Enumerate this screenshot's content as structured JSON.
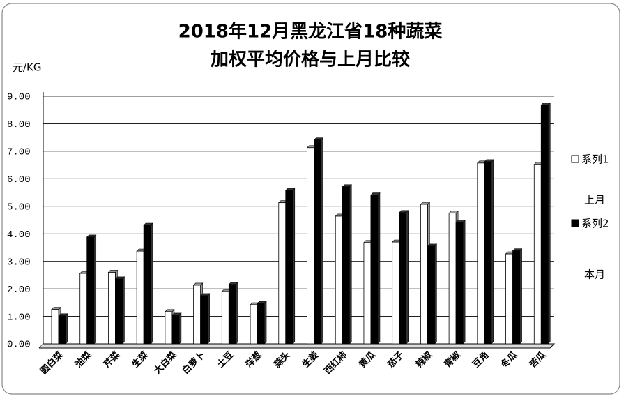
{
  "chart_data": {
    "type": "bar",
    "title": "2018年12月黑龙江省18种蔬菜",
    "subtitle": "加权平均价格与上月比较",
    "y_label": "元/KG",
    "categories": [
      "圆白菜",
      "油菜",
      "芹菜",
      "生菜",
      "大白菜",
      "白萝卜",
      "土豆",
      "洋葱",
      "蒜头",
      "生姜",
      "西红柿",
      "黄瓜",
      "茄子",
      "辣椒",
      "青椒",
      "豆角",
      "冬瓜",
      "苦瓜"
    ],
    "series": [
      {
        "name": "系列1",
        "color": "#ffffff",
        "values": [
          1.25,
          2.56,
          2.6,
          3.37,
          1.17,
          2.13,
          1.9,
          1.42,
          5.13,
          7.13,
          4.64,
          3.68,
          3.7,
          5.07,
          4.75,
          6.57,
          3.27,
          6.52
        ]
      },
      {
        "name": "系列2",
        "color": "#000000",
        "values": [
          1.02,
          3.88,
          2.36,
          4.31,
          1.04,
          1.75,
          2.16,
          1.47,
          5.58,
          7.41,
          5.71,
          5.41,
          4.77,
          3.55,
          4.42,
          6.62,
          3.38,
          8.68
        ]
      }
    ],
    "annotations": [
      "上月",
      "本月"
    ],
    "ylim": [
      0,
      9
    ],
    "yticks": [
      {
        "value": 0,
        "label": "0.00"
      },
      {
        "value": 1,
        "label": "1.00"
      },
      {
        "value": 2,
        "label": "2.00"
      },
      {
        "value": 3,
        "label": "3.00"
      },
      {
        "value": 4,
        "label": "4.00"
      },
      {
        "value": 5,
        "label": "5.00"
      },
      {
        "value": 6,
        "label": "6.00"
      },
      {
        "value": 7,
        "label": "7.00"
      },
      {
        "value": 8,
        "label": "8.00"
      },
      {
        "value": 9,
        "label": "9.00"
      }
    ],
    "grid": true
  }
}
